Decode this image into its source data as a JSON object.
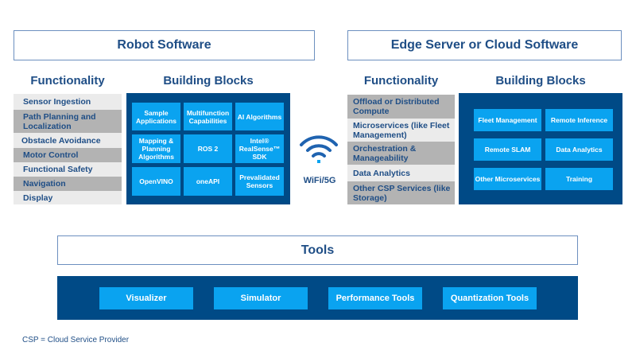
{
  "robot": {
    "header": "Robot Software",
    "functionality_title": "Functionality",
    "blocks_title": "Building Blocks",
    "functions": [
      "Sensor Ingestion",
      "Path Planning and Localization",
      "Obstacle Avoidance",
      "Motor Control",
      "Functional Safety",
      "Navigation",
      "Display"
    ],
    "blocks": [
      "Sample Applications",
      "Multifunction Capabilities",
      "AI Algorithms",
      "Mapping & Planning Algorithms",
      "ROS 2",
      "Intel® RealSense™ SDK",
      "OpenVINO",
      "oneAPI",
      "Prevalidated Sensors"
    ]
  },
  "link": {
    "label": "WiFi/5G",
    "icon": "wifi-icon"
  },
  "edge": {
    "header": "Edge Server or Cloud Software",
    "functionality_title": "Functionality",
    "blocks_title": "Building Blocks",
    "functions": [
      "Offload or Distributed Compute",
      "Microservices (like Fleet Management)",
      "Orchestration & Manageability",
      "Data Analytics",
      "Other CSP Services (like Storage)"
    ],
    "blocks": [
      "Fleet Management",
      "Remote Inference",
      "Remote SLAM",
      "Data Analytics",
      "Other Microservices",
      "Training"
    ]
  },
  "tools": {
    "header": "Tools",
    "items": [
      "Visualizer",
      "Simulator",
      "Performance Tools",
      "Quantization Tools"
    ]
  },
  "footnote": "CSP = Cloud Service Provider",
  "colors": {
    "dark_blue": "#004a86",
    "tile_blue": "#0aa3f0",
    "gray": "#b3b3b3",
    "light": "#ebebeb",
    "text": "#1f4e86"
  }
}
